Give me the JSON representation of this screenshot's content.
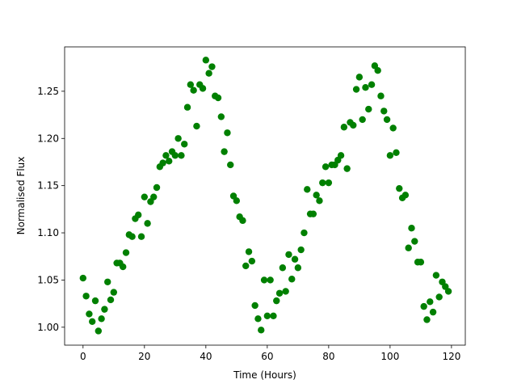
{
  "chart_data": {
    "type": "scatter",
    "xlabel": "Time (Hours)",
    "ylabel": "Normalised Flux",
    "color": "#008000",
    "x": [
      0,
      1,
      2,
      3,
      4,
      5,
      6,
      7,
      8,
      9,
      10,
      11,
      12,
      13,
      14,
      15,
      16,
      17,
      18,
      19,
      20,
      21,
      22,
      23,
      24,
      25,
      26,
      27,
      28,
      29,
      30,
      31,
      32,
      33,
      34,
      35,
      36,
      37,
      38,
      39,
      40,
      41,
      42,
      43,
      44,
      45,
      46,
      47,
      48,
      49,
      50,
      51,
      52,
      53,
      54,
      55,
      56,
      57,
      58,
      59,
      60,
      61,
      62,
      63,
      64,
      65,
      66,
      67,
      68,
      69,
      70,
      71,
      72,
      73,
      74,
      75,
      76,
      77,
      78,
      79,
      80,
      81,
      82,
      83,
      84,
      85,
      86,
      87,
      88,
      89,
      90,
      91,
      92,
      93,
      94,
      95,
      96,
      97,
      98,
      99,
      100,
      101,
      102,
      103,
      104,
      105,
      106,
      107,
      108,
      109,
      110,
      111,
      112,
      113,
      114,
      115,
      116,
      117,
      118,
      119
    ],
    "values": [
      1.052,
      1.033,
      1.014,
      1.006,
      1.028,
      0.996,
      1.009,
      1.019,
      1.048,
      1.029,
      1.037,
      1.068,
      1.068,
      1.064,
      1.079,
      1.098,
      1.096,
      1.115,
      1.119,
      1.096,
      1.138,
      1.11,
      1.133,
      1.138,
      1.148,
      1.17,
      1.174,
      1.182,
      1.176,
      1.186,
      1.182,
      1.2,
      1.182,
      1.194,
      1.233,
      1.257,
      1.251,
      1.213,
      1.257,
      1.253,
      1.283,
      1.269,
      1.276,
      1.245,
      1.243,
      1.223,
      1.186,
      1.206,
      1.172,
      1.139,
      1.134,
      1.117,
      1.113,
      1.065,
      1.08,
      1.07,
      1.023,
      1.009,
      0.997,
      1.05,
      1.012,
      1.05,
      1.012,
      1.028,
      1.036,
      1.063,
      1.038,
      1.077,
      1.051,
      1.072,
      1.063,
      1.082,
      1.1,
      1.146,
      1.12,
      1.12,
      1.14,
      1.134,
      1.153,
      1.17,
      1.153,
      1.172,
      1.172,
      1.177,
      1.182,
      1.212,
      1.168,
      1.217,
      1.214,
      1.252,
      1.265,
      1.22,
      1.254,
      1.231,
      1.257,
      1.277,
      1.272,
      1.245,
      1.229,
      1.22,
      1.182,
      1.211,
      1.185,
      1.147,
      1.137,
      1.14,
      1.084,
      1.105,
      1.091,
      1.069,
      1.069,
      1.022,
      1.008,
      1.027,
      1.016,
      1.055,
      1.032,
      1.048,
      1.043,
      1.038
    ],
    "xlim": [
      -6,
      124.5
    ],
    "ylim": [
      0.981,
      1.297
    ],
    "xticks": [
      0,
      20,
      40,
      60,
      80,
      100,
      120
    ],
    "yticks": [
      {
        "value": 1,
        "label": "1.00"
      },
      {
        "value": 1.05,
        "label": "1.05"
      },
      {
        "value": 1.1,
        "label": "1.10"
      },
      {
        "value": 1.15,
        "label": "1.15"
      },
      {
        "value": 1.2,
        "label": "1.20"
      },
      {
        "value": 1.25,
        "label": "1.25"
      }
    ]
  }
}
